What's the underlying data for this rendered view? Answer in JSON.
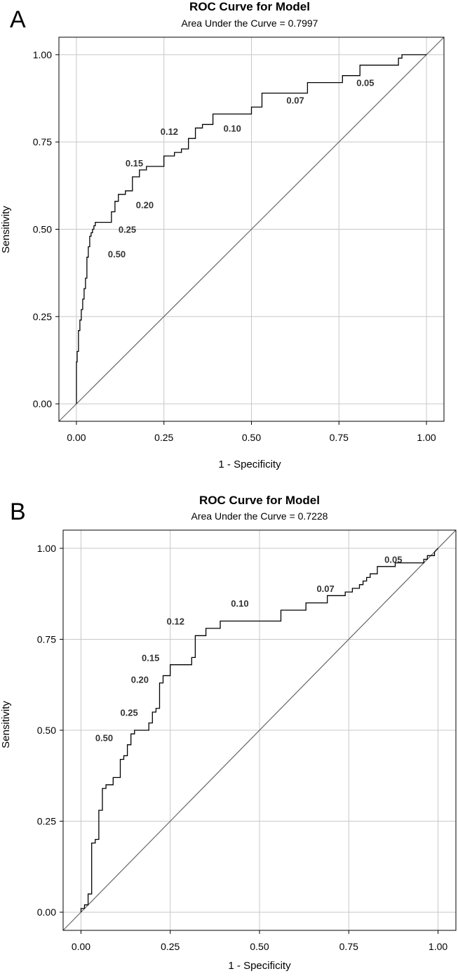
{
  "chart_data": [
    {
      "panel_label": "A",
      "type": "line",
      "title": "ROC Curve for Model",
      "subtitle": "Area Under the Curve = 0.7997",
      "xlabel": "1 - Specificity",
      "ylabel": "Sensitivity",
      "xlim": [
        -0.05,
        1.05
      ],
      "ylim": [
        -0.05,
        1.05
      ],
      "xticks": [
        "0.00",
        "0.25",
        "0.50",
        "0.75",
        "1.00"
      ],
      "yticks": [
        "0.00",
        "0.25",
        "0.50",
        "0.75",
        "1.00"
      ],
      "grid": true,
      "diagonal_reference": true,
      "series": [
        {
          "x": [
            0.0,
            0.0,
            0.002,
            0.002,
            0.006,
            0.006,
            0.01,
            0.01,
            0.014,
            0.014,
            0.018,
            0.018,
            0.022,
            0.022,
            0.026,
            0.026,
            0.03,
            0.03,
            0.034,
            0.034,
            0.038,
            0.038,
            0.042,
            0.042,
            0.046,
            0.046,
            0.05,
            0.05,
            0.054,
            0.054,
            0.06,
            0.06,
            0.1,
            0.1,
            0.11,
            0.11,
            0.12,
            0.12,
            0.14,
            0.14,
            0.16,
            0.16,
            0.18,
            0.18,
            0.2,
            0.2,
            0.24,
            0.24,
            0.25,
            0.25,
            0.28,
            0.28,
            0.3,
            0.3,
            0.32,
            0.32,
            0.34,
            0.34,
            0.36,
            0.36,
            0.39,
            0.39,
            0.5,
            0.5,
            0.53,
            0.53,
            0.55,
            0.55,
            0.66,
            0.66,
            0.76,
            0.76,
            0.81,
            0.81,
            0.92,
            0.92,
            0.93,
            0.93,
            1.0
          ],
          "y": [
            0.0,
            0.12,
            0.12,
            0.15,
            0.15,
            0.21,
            0.21,
            0.24,
            0.24,
            0.27,
            0.27,
            0.3,
            0.3,
            0.33,
            0.33,
            0.36,
            0.36,
            0.42,
            0.42,
            0.45,
            0.45,
            0.48,
            0.48,
            0.49,
            0.49,
            0.5,
            0.5,
            0.51,
            0.51,
            0.52,
            0.52,
            0.52,
            0.52,
            0.55,
            0.55,
            0.58,
            0.58,
            0.6,
            0.6,
            0.61,
            0.61,
            0.65,
            0.65,
            0.67,
            0.67,
            0.68,
            0.68,
            0.68,
            0.68,
            0.71,
            0.71,
            0.72,
            0.72,
            0.73,
            0.73,
            0.76,
            0.76,
            0.79,
            0.79,
            0.8,
            0.8,
            0.83,
            0.83,
            0.85,
            0.85,
            0.89,
            0.89,
            0.89,
            0.89,
            0.92,
            0.92,
            0.94,
            0.94,
            0.97,
            0.97,
            0.99,
            0.99,
            1.0,
            1.0
          ]
        }
      ],
      "annotations": [
        {
          "text": "0.05",
          "x": 0.8,
          "y": 0.91
        },
        {
          "text": "0.07",
          "x": 0.6,
          "y": 0.86
        },
        {
          "text": "0.10",
          "x": 0.42,
          "y": 0.78
        },
        {
          "text": "0.12",
          "x": 0.24,
          "y": 0.77
        },
        {
          "text": "0.15",
          "x": 0.14,
          "y": 0.68
        },
        {
          "text": "0.20",
          "x": 0.17,
          "y": 0.56
        },
        {
          "text": "0.25",
          "x": 0.12,
          "y": 0.49
        },
        {
          "text": "0.50",
          "x": 0.09,
          "y": 0.42
        }
      ]
    },
    {
      "panel_label": "B",
      "type": "line",
      "title": "ROC Curve for Model",
      "subtitle": "Area Under the Curve = 0.7228",
      "xlabel": "1 - Specificity",
      "ylabel": "Sensitivity",
      "xlim": [
        -0.05,
        1.05
      ],
      "ylim": [
        -0.05,
        1.05
      ],
      "xticks": [
        "0.00",
        "0.25",
        "0.50",
        "0.75",
        "1.00"
      ],
      "yticks": [
        "0.00",
        "0.25",
        "0.50",
        "0.75",
        "1.00"
      ],
      "grid": true,
      "diagonal_reference": true,
      "series": [
        {
          "x": [
            0.0,
            0.0,
            0.01,
            0.01,
            0.02,
            0.02,
            0.03,
            0.03,
            0.04,
            0.04,
            0.05,
            0.05,
            0.06,
            0.06,
            0.07,
            0.07,
            0.09,
            0.09,
            0.11,
            0.11,
            0.12,
            0.12,
            0.13,
            0.13,
            0.14,
            0.14,
            0.15,
            0.15,
            0.19,
            0.19,
            0.2,
            0.2,
            0.21,
            0.21,
            0.22,
            0.22,
            0.23,
            0.23,
            0.25,
            0.25,
            0.26,
            0.26,
            0.31,
            0.31,
            0.32,
            0.32,
            0.35,
            0.35,
            0.39,
            0.39,
            0.56,
            0.56,
            0.63,
            0.63,
            0.69,
            0.69,
            0.74,
            0.74,
            0.76,
            0.76,
            0.78,
            0.78,
            0.79,
            0.79,
            0.8,
            0.8,
            0.81,
            0.81,
            0.83,
            0.83,
            0.88,
            0.88,
            0.94,
            0.94,
            0.96,
            0.96,
            0.97,
            0.97,
            0.99,
            0.99,
            1.0
          ],
          "y": [
            0.0,
            0.01,
            0.01,
            0.02,
            0.02,
            0.05,
            0.05,
            0.19,
            0.19,
            0.2,
            0.2,
            0.28,
            0.28,
            0.34,
            0.34,
            0.35,
            0.35,
            0.37,
            0.37,
            0.42,
            0.42,
            0.43,
            0.43,
            0.46,
            0.46,
            0.49,
            0.49,
            0.5,
            0.5,
            0.52,
            0.52,
            0.55,
            0.55,
            0.56,
            0.56,
            0.63,
            0.63,
            0.65,
            0.65,
            0.68,
            0.68,
            0.68,
            0.68,
            0.7,
            0.7,
            0.76,
            0.76,
            0.78,
            0.78,
            0.8,
            0.8,
            0.83,
            0.83,
            0.85,
            0.85,
            0.87,
            0.87,
            0.88,
            0.88,
            0.89,
            0.89,
            0.9,
            0.9,
            0.91,
            0.91,
            0.92,
            0.92,
            0.93,
            0.93,
            0.95,
            0.95,
            0.96,
            0.96,
            0.96,
            0.96,
            0.97,
            0.97,
            0.98,
            0.98,
            0.99,
            1.0
          ]
        }
      ],
      "annotations": [
        {
          "text": "0.05",
          "x": 0.85,
          "y": 0.96
        },
        {
          "text": "0.07",
          "x": 0.66,
          "y": 0.88
        },
        {
          "text": "0.10",
          "x": 0.42,
          "y": 0.84
        },
        {
          "text": "0.12",
          "x": 0.24,
          "y": 0.79
        },
        {
          "text": "0.15",
          "x": 0.17,
          "y": 0.69
        },
        {
          "text": "0.20",
          "x": 0.14,
          "y": 0.63
        },
        {
          "text": "0.25",
          "x": 0.11,
          "y": 0.54
        },
        {
          "text": "0.50",
          "x": 0.04,
          "y": 0.47
        }
      ]
    }
  ]
}
